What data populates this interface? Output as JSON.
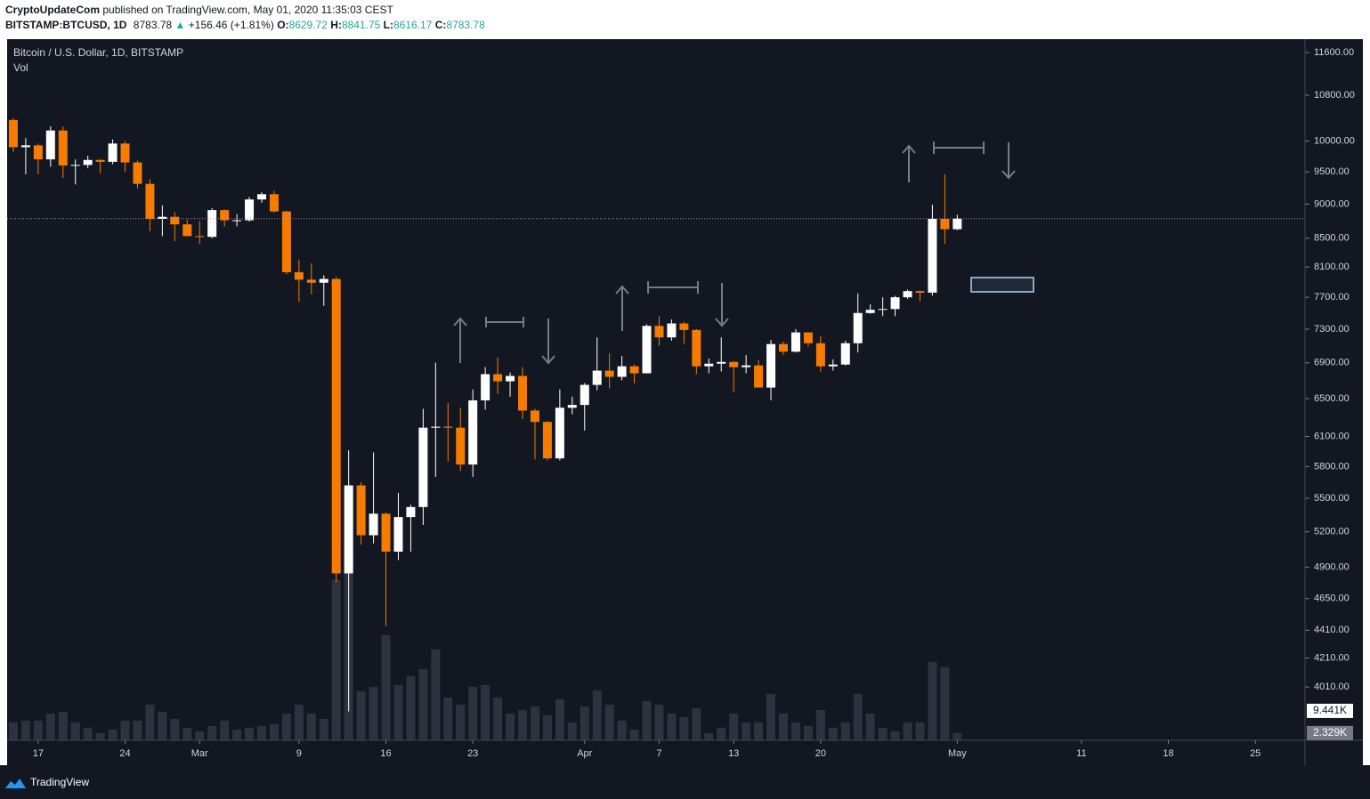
{
  "header": {
    "publisher": "CryptoUpdateCom",
    "published": "published on TradingView.com, May 01, 2020 11:35:03 CEST",
    "symbol": "BITSTAMP:BTCUSD, 1D",
    "last": "8783.78",
    "arrow": "▲",
    "change": "+156.46 (+1.81%)",
    "ohlc": [
      {
        "label": "O:",
        "value": "8629.72"
      },
      {
        "label": "H:",
        "value": "8841.75"
      },
      {
        "label": "L:",
        "value": "8616.17"
      },
      {
        "label": "C:",
        "value": "8783.78"
      }
    ]
  },
  "footer": {
    "brand": "TradingView"
  },
  "chart_data": {
    "type": "candlestick",
    "title": "Bitcoin / U.S. Dollar, 1D, BITSTAMP",
    "volume_title": "Vol",
    "log_scale": true,
    "grid": false,
    "up_color": "#ffffff",
    "down_color": "#f57c00",
    "x": [
      "2020-02-15",
      "2020-02-16",
      "2020-02-17",
      "2020-02-18",
      "2020-02-19",
      "2020-02-20",
      "2020-02-21",
      "2020-02-22",
      "2020-02-23",
      "2020-02-24",
      "2020-02-25",
      "2020-02-26",
      "2020-02-27",
      "2020-02-28",
      "2020-02-29",
      "2020-03-01",
      "2020-03-02",
      "2020-03-03",
      "2020-03-04",
      "2020-03-05",
      "2020-03-06",
      "2020-03-07",
      "2020-03-08",
      "2020-03-09",
      "2020-03-10",
      "2020-03-11",
      "2020-03-12",
      "2020-03-13",
      "2020-03-14",
      "2020-03-15",
      "2020-03-16",
      "2020-03-17",
      "2020-03-18",
      "2020-03-19",
      "2020-03-20",
      "2020-03-21",
      "2020-03-22",
      "2020-03-23",
      "2020-03-24",
      "2020-03-25",
      "2020-03-26",
      "2020-03-27",
      "2020-03-28",
      "2020-03-29",
      "2020-03-30",
      "2020-03-31",
      "2020-04-01",
      "2020-04-02",
      "2020-04-03",
      "2020-04-04",
      "2020-04-05",
      "2020-04-06",
      "2020-04-07",
      "2020-04-08",
      "2020-04-09",
      "2020-04-10",
      "2020-04-11",
      "2020-04-12",
      "2020-04-13",
      "2020-04-14",
      "2020-04-15",
      "2020-04-16",
      "2020-04-17",
      "2020-04-18",
      "2020-04-19",
      "2020-04-20",
      "2020-04-21",
      "2020-04-22",
      "2020-04-23",
      "2020-04-24",
      "2020-04-25",
      "2020-04-26",
      "2020-04-27",
      "2020-04-28",
      "2020-04-29",
      "2020-04-30",
      "2020-05-01"
    ],
    "open": [
      10360,
      9900,
      9930,
      9700,
      10180,
      9600,
      9610,
      9690,
      9660,
      9960,
      9650,
      9310,
      8780,
      8810,
      8700,
      8530,
      8520,
      8910,
      8760,
      8760,
      9070,
      9150,
      8890,
      8030,
      7930,
      7890,
      7940,
      4850,
      5620,
      5170,
      5360,
      5030,
      5330,
      5420,
      6190,
      6200,
      6190,
      5820,
      6480,
      6770,
      6690,
      6750,
      6370,
      6250,
      5880,
      6400,
      6430,
      6650,
      6810,
      6740,
      6860,
      6780,
      7340,
      7200,
      7370,
      7290,
      6860,
      6890,
      6910,
      6850,
      6870,
      6620,
      7120,
      7030,
      7260,
      7130,
      6860,
      6880,
      7130,
      7500,
      7540,
      7550,
      7700,
      7780,
      7760,
      8780,
      8629.72
    ],
    "high": [
      10390,
      10050,
      9960,
      10250,
      10250,
      9700,
      9760,
      9700,
      10030,
      10000,
      9680,
      9380,
      8980,
      8880,
      8770,
      8750,
      8940,
      8920,
      8850,
      9110,
      9180,
      9200,
      8900,
      8200,
      8150,
      7990,
      7970,
      5960,
      5650,
      5940,
      5370,
      5550,
      5440,
      6390,
      6900,
      6450,
      6400,
      6600,
      6850,
      6960,
      6790,
      6850,
      6390,
      6260,
      6600,
      6520,
      6670,
      7200,
      7010,
      6980,
      6880,
      7360,
      7460,
      7420,
      7390,
      7300,
      6950,
      7200,
      6920,
      6990,
      6930,
      7170,
      7150,
      7300,
      7260,
      7220,
      6940,
      7160,
      7750,
      7610,
      7700,
      7720,
      7800,
      7790,
      8990,
      9460,
      8841.75
    ],
    "low": [
      9820,
      9460,
      9460,
      9580,
      9400,
      9300,
      9560,
      9480,
      9620,
      9500,
      9240,
      8600,
      8530,
      8460,
      8530,
      8420,
      8500,
      8670,
      8670,
      8740,
      9020,
      8870,
      8000,
      7640,
      7740,
      7590,
      4780,
      3850,
      5090,
      5100,
      4440,
      4960,
      5030,
      5260,
      5700,
      5850,
      5760,
      5700,
      6380,
      6550,
      6520,
      6280,
      5870,
      5860,
      5860,
      6330,
      6160,
      6590,
      6610,
      6700,
      6670,
      6780,
      7100,
      7160,
      7120,
      6770,
      6780,
      6800,
      6570,
      6780,
      6620,
      6480,
      6990,
      7020,
      7090,
      6800,
      6810,
      6870,
      7020,
      7490,
      7460,
      7460,
      7680,
      7650,
      7720,
      8420,
      8616.17
    ],
    "close": [
      9900,
      9930,
      9700,
      10180,
      9600,
      9610,
      9690,
      9660,
      9960,
      9650,
      9310,
      8780,
      8810,
      8700,
      8530,
      8520,
      8910,
      8760,
      8760,
      9070,
      9150,
      8890,
      8030,
      7930,
      7890,
      7940,
      4850,
      5620,
      5170,
      5360,
      5030,
      5330,
      5420,
      6190,
      6200,
      6190,
      5820,
      6480,
      6770,
      6690,
      6750,
      6370,
      6250,
      5880,
      6400,
      6430,
      6650,
      6810,
      6740,
      6860,
      6780,
      7340,
      7200,
      7370,
      7290,
      6860,
      6890,
      6910,
      6850,
      6870,
      6620,
      7120,
      7030,
      7260,
      7130,
      6860,
      6880,
      7130,
      7500,
      7540,
      7550,
      7700,
      7780,
      7760,
      8780,
      8630,
      8783.78
    ],
    "volume": [
      5720,
      6290,
      6290,
      8580,
      9150,
      5720,
      4000,
      2290,
      3430,
      6290,
      6290,
      11440,
      9150,
      6860,
      4000,
      2860,
      4580,
      6290,
      3430,
      4000,
      4580,
      5150,
      8580,
      11440,
      8580,
      6860,
      51480,
      62920,
      15730,
      17160,
      33750,
      17730,
      20590,
      22880,
      29170,
      13730,
      11440,
      17160,
      17730,
      13730,
      8580,
      9720,
      10870,
      8010,
      13160,
      5720,
      10870,
      16020,
      11440,
      6290,
      3430,
      12580,
      11440,
      8580,
      7440,
      10300,
      2290,
      4000,
      8580,
      5720,
      5720,
      14870,
      8580,
      5720,
      4580,
      9720,
      4000,
      5720,
      14870,
      8580,
      4000,
      2860,
      5720,
      5720,
      25170,
      23450,
      2329
    ],
    "volume_last_label": "2.329K",
    "volume_ma": {
      "value": 9441,
      "label": "9.441K"
    },
    "xlim": [
      "2020-02-14",
      "2020-05-29"
    ],
    "xticks": [
      {
        "value": "2020-02-17",
        "label": "17"
      },
      {
        "value": "2020-02-24",
        "label": "24"
      },
      {
        "value": "2020-03-01",
        "label": "Mar"
      },
      {
        "value": "2020-03-09",
        "label": "9"
      },
      {
        "value": "2020-03-16",
        "label": "16"
      },
      {
        "value": "2020-03-23",
        "label": "23"
      },
      {
        "value": "2020-04-01",
        "label": "Apr"
      },
      {
        "value": "2020-04-07",
        "label": "7"
      },
      {
        "value": "2020-04-13",
        "label": "13"
      },
      {
        "value": "2020-04-20",
        "label": "20"
      },
      {
        "value": "2020-05-01",
        "label": "May"
      },
      {
        "value": "2020-05-11",
        "label": "11"
      },
      {
        "value": "2020-05-18",
        "label": "18"
      },
      {
        "value": "2020-05-25",
        "label": "25"
      }
    ],
    "ylim": [
      3668,
      11862
    ],
    "yticks": [
      {
        "value": 11600,
        "label": "11600.00"
      },
      {
        "value": 10800,
        "label": "10800.00"
      },
      {
        "value": 10000,
        "label": "10000.00"
      },
      {
        "value": 9500,
        "label": "9500.00"
      },
      {
        "value": 9000,
        "label": "9000.00"
      },
      {
        "value": 8500,
        "label": "8500.00"
      },
      {
        "value": 8100,
        "label": "8100.00"
      },
      {
        "value": 7700,
        "label": "7700.00"
      },
      {
        "value": 7300,
        "label": "7300.00"
      },
      {
        "value": 6900,
        "label": "6900.00"
      },
      {
        "value": 6500,
        "label": "6500.00"
      },
      {
        "value": 6100,
        "label": "6100.00"
      },
      {
        "value": 5800,
        "label": "5800.00"
      },
      {
        "value": 5500,
        "label": "5500.00"
      },
      {
        "value": 5200,
        "label": "5200.00"
      },
      {
        "value": 4900,
        "label": "4900.00"
      },
      {
        "value": 4650,
        "label": "4650.00"
      },
      {
        "value": 4410,
        "label": "4410.00"
      },
      {
        "value": 4210,
        "label": "4210.00"
      },
      {
        "value": 4010,
        "label": "4010.00"
      }
    ],
    "y2lim": [
      0,
      225000
    ]
  }
}
